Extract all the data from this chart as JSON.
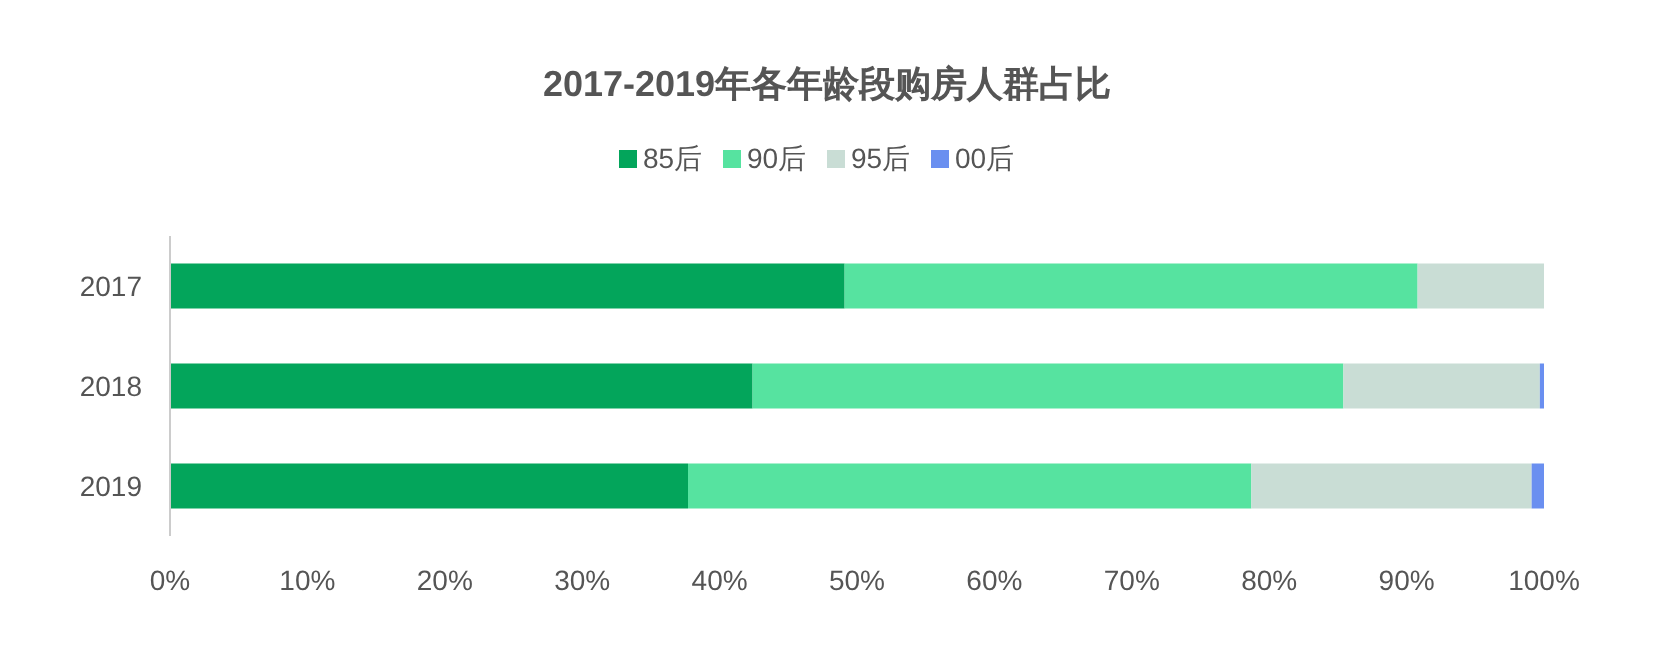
{
  "chart_data": {
    "type": "bar",
    "title": "2017-2019年各年龄段购房人群占比",
    "orientation": "horizontal",
    "stacked": true,
    "categories": [
      "2017",
      "2018",
      "2019"
    ],
    "series": [
      {
        "name": "85后",
        "color": "#03a55b",
        "values": [
          49.1,
          42.4,
          37.7
        ]
      },
      {
        "name": "90后",
        "color": "#56e3a0",
        "values": [
          41.7,
          43.0,
          41.0
        ]
      },
      {
        "name": "95后",
        "color": "#c9ddd5",
        "values": [
          9.2,
          14.3,
          20.4
        ]
      },
      {
        "name": "00后",
        "color": "#6a8ff0",
        "values": [
          0,
          0.3,
          0.9
        ]
      }
    ],
    "xlim": [
      0,
      100
    ],
    "xticks": [
      {
        "value": 0,
        "label": "0%"
      },
      {
        "value": 10,
        "label": "10%"
      },
      {
        "value": 20,
        "label": "20%"
      },
      {
        "value": 30,
        "label": "30%"
      },
      {
        "value": 40,
        "label": "40%"
      },
      {
        "value": 50,
        "label": "50%"
      },
      {
        "value": 60,
        "label": "60%"
      },
      {
        "value": 70,
        "label": "70%"
      },
      {
        "value": 80,
        "label": "80%"
      },
      {
        "value": 90,
        "label": "90%"
      },
      {
        "value": 100,
        "label": "100%"
      }
    ],
    "grid": false,
    "legend": "top"
  }
}
